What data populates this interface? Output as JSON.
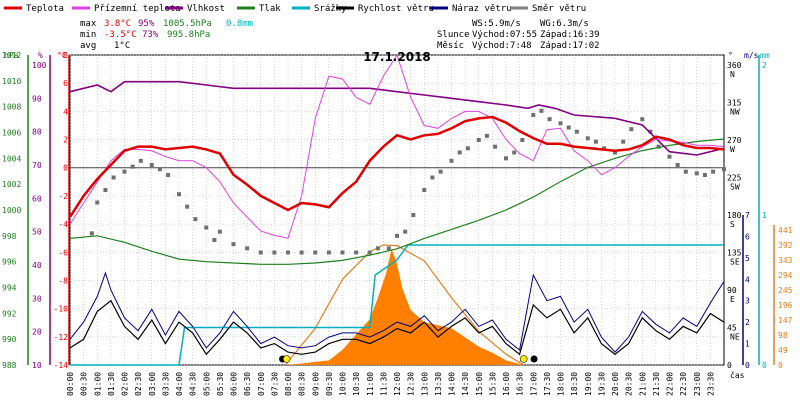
{
  "chart_data": {
    "type": "line",
    "title": "17.1.2018",
    "legend": [
      {
        "name": "Teplota",
        "color": "#e00000"
      },
      {
        "name": "Přízemní teplota",
        "color": "#e040e0"
      },
      {
        "name": "Vlhkost",
        "color": "#800080"
      },
      {
        "name": "Tlak",
        "color": "#208020"
      },
      {
        "name": "Srážky",
        "color": "#00b0c0"
      },
      {
        "name": "Rychlost větru",
        "color": "#000000"
      },
      {
        "name": "Náraz větru",
        "color": "#000080"
      },
      {
        "name": "Směr větru",
        "color": "#808080"
      }
    ],
    "stats": {
      "max_label": "max",
      "max_temp": "3.8°C",
      "max_hum": "95%",
      "max_press": "1005.5hPa",
      "max_rain": "0.8mm",
      "min_label": "min",
      "min_temp": "-3.5°C",
      "min_hum": "73%",
      "min_press": "995.8hPa",
      "avg_label": "avg",
      "avg_temp": "1°C",
      "ws": "WS:5.9m/s",
      "wg": "WG:6.3m/s",
      "sun_label": "Slunce",
      "sun_rise": "Východ:07:55",
      "sun_set": "Západ:16:39",
      "moon_label": "Měsíc",
      "moon_rise": "Východ:7:48",
      "moon_set": "Západ:17:02"
    },
    "x_unit": "čas",
    "x_ticks": [
      "00:00",
      "00:30",
      "01:00",
      "01:30",
      "02:00",
      "02:30",
      "03:00",
      "03:30",
      "04:00",
      "04:30",
      "05:00",
      "05:30",
      "06:00",
      "06:30",
      "07:00",
      "07:30",
      "08:00",
      "08:30",
      "09:00",
      "09:30",
      "10:00",
      "10:30",
      "11:00",
      "11:30",
      "12:00",
      "12:30",
      "13:00",
      "13:30",
      "14:00",
      "14:30",
      "15:00",
      "15:30",
      "16:00",
      "16:30",
      "17:00",
      "17:30",
      "18:00",
      "18:30",
      "19:00",
      "19:30",
      "20:00",
      "20:30",
      "21:00",
      "21:30",
      "22:00",
      "22:30",
      "23:00",
      "23:30"
    ],
    "axes": {
      "hpa": {
        "unit": "hPa",
        "ticks": [
          1012,
          1010,
          1008,
          1006,
          1004,
          1002,
          1000,
          998,
          996,
          994,
          992,
          990,
          988
        ]
      },
      "pct": {
        "unit": "%",
        "ticks": [
          100,
          90,
          80,
          70,
          60,
          50,
          40,
          30,
          20,
          10
        ]
      },
      "temp": {
        "unit": "°C",
        "ticks": [
          8,
          6,
          4,
          2,
          0,
          -2,
          -4,
          -6,
          -8,
          -10,
          -12,
          -14
        ]
      },
      "deg": {
        "unit": "°",
        "ticks": [
          "360",
          "315",
          "270",
          "225",
          "180",
          "135",
          "90",
          "45",
          "0"
        ],
        "dirs": [
          "N",
          "NW",
          "W",
          "SW",
          "S",
          "SE",
          "E",
          "NE",
          ""
        ]
      },
      "ms": {
        "unit": "m/s",
        "ticks": [
          7,
          6,
          5,
          4,
          3,
          2,
          1,
          0
        ]
      },
      "mm": {
        "unit": "mm",
        "ticks": [
          2,
          1,
          0
        ]
      },
      "rad": {
        "ticks": [
          441,
          392,
          343,
          294,
          245,
          196,
          147,
          98,
          49,
          0
        ]
      }
    },
    "temperature": [
      [
        0,
        -3.5
      ],
      [
        0.5,
        -2
      ],
      [
        1,
        -0.8
      ],
      [
        1.5,
        0.2
      ],
      [
        2,
        1.2
      ],
      [
        2.5,
        1.5
      ],
      [
        3,
        1.5
      ],
      [
        3.5,
        1.3
      ],
      [
        4,
        1.4
      ],
      [
        4.5,
        1.5
      ],
      [
        5,
        1.3
      ],
      [
        5.5,
        1
      ],
      [
        6,
        -0.5
      ],
      [
        6.5,
        -1.2
      ],
      [
        7,
        -2
      ],
      [
        7.5,
        -2.5
      ],
      [
        8,
        -3
      ],
      [
        8.5,
        -2.5
      ],
      [
        9,
        -2.6
      ],
      [
        9.5,
        -2.8
      ],
      [
        10,
        -1.8
      ],
      [
        10.5,
        -1
      ],
      [
        11,
        0.5
      ],
      [
        11.5,
        1.5
      ],
      [
        12,
        2.3
      ],
      [
        12.5,
        2
      ],
      [
        13,
        2.3
      ],
      [
        13.5,
        2.4
      ],
      [
        14,
        2.8
      ],
      [
        14.5,
        3.3
      ],
      [
        15,
        3.5
      ],
      [
        15.5,
        3.6
      ],
      [
        16,
        3.2
      ],
      [
        16.5,
        2.6
      ],
      [
        17,
        2.1
      ],
      [
        17.5,
        1.7
      ],
      [
        18,
        1.7
      ],
      [
        18.5,
        1.5
      ],
      [
        19,
        1.4
      ],
      [
        19.5,
        1.3
      ],
      [
        20,
        1.2
      ],
      [
        20.5,
        1.3
      ],
      [
        21,
        1.6
      ],
      [
        21.5,
        2.2
      ],
      [
        22,
        2
      ],
      [
        22.5,
        1.6
      ],
      [
        23,
        1.4
      ],
      [
        23.5,
        1.4
      ],
      [
        24,
        1.3
      ]
    ],
    "ground_temperature": [
      [
        0,
        -4
      ],
      [
        0.5,
        -2.5
      ],
      [
        1,
        -1
      ],
      [
        1.5,
        0.5
      ],
      [
        2,
        1.3
      ],
      [
        2.5,
        1.3
      ],
      [
        3,
        1.2
      ],
      [
        3.5,
        0.8
      ],
      [
        4,
        0.5
      ],
      [
        4.5,
        0.5
      ],
      [
        5,
        0
      ],
      [
        5.5,
        -1
      ],
      [
        6,
        -2.5
      ],
      [
        6.5,
        -3.5
      ],
      [
        7,
        -4.5
      ],
      [
        7.5,
        -4.8
      ],
      [
        8,
        -5
      ],
      [
        8.5,
        -2
      ],
      [
        9,
        3.5
      ],
      [
        9.5,
        6.5
      ],
      [
        10,
        6.3
      ],
      [
        10.5,
        5
      ],
      [
        11,
        4.5
      ],
      [
        11.5,
        6.5
      ],
      [
        12,
        8
      ],
      [
        12.5,
        5
      ],
      [
        13,
        3
      ],
      [
        13.5,
        2.8
      ],
      [
        14,
        3.5
      ],
      [
        14.5,
        4
      ],
      [
        15,
        4
      ],
      [
        15.5,
        3.5
      ],
      [
        16,
        2
      ],
      [
        16.5,
        1
      ],
      [
        17,
        0.5
      ],
      [
        17.5,
        2.7
      ],
      [
        18,
        2.8
      ],
      [
        18.5,
        1.2
      ],
      [
        19,
        0.5
      ],
      [
        19.5,
        -0.5
      ],
      [
        20,
        0
      ],
      [
        20.5,
        0.8
      ],
      [
        21,
        1.5
      ],
      [
        21.5,
        2
      ],
      [
        22,
        1.9
      ],
      [
        22.5,
        1.8
      ],
      [
        23,
        1.6
      ],
      [
        23.5,
        1.6
      ],
      [
        24,
        1.5
      ]
    ],
    "humidity": [
      [
        0,
        92
      ],
      [
        1,
        94
      ],
      [
        1.5,
        92
      ],
      [
        2,
        95
      ],
      [
        3,
        95
      ],
      [
        4,
        95
      ],
      [
        5,
        94
      ],
      [
        6,
        93
      ],
      [
        7,
        93
      ],
      [
        8,
        93
      ],
      [
        9,
        93
      ],
      [
        10,
        93
      ],
      [
        11,
        93
      ],
      [
        12,
        92
      ],
      [
        13,
        91
      ],
      [
        14,
        90
      ],
      [
        15,
        89
      ],
      [
        16,
        88
      ],
      [
        16.8,
        87
      ],
      [
        17.2,
        88
      ],
      [
        17.8,
        87
      ],
      [
        18.5,
        85
      ],
      [
        20,
        84
      ],
      [
        21,
        82
      ],
      [
        22,
        74
      ],
      [
        23,
        73
      ],
      [
        24,
        75
      ]
    ],
    "pressure": [
      [
        0,
        997.8
      ],
      [
        1,
        998
      ],
      [
        2,
        997.5
      ],
      [
        3,
        996.8
      ],
      [
        4,
        996.2
      ],
      [
        5,
        996
      ],
      [
        6,
        995.9
      ],
      [
        7,
        995.8
      ],
      [
        8,
        995.8
      ],
      [
        9,
        995.9
      ],
      [
        10,
        996.1
      ],
      [
        11,
        996.5
      ],
      [
        12,
        997
      ],
      [
        13,
        997.8
      ],
      [
        14,
        998.5
      ],
      [
        15,
        999.2
      ],
      [
        16,
        1000
      ],
      [
        17,
        1001
      ],
      [
        18,
        1002.2
      ],
      [
        19,
        1003.3
      ],
      [
        20,
        1004
      ],
      [
        21,
        1004.6
      ],
      [
        22,
        1005
      ],
      [
        23,
        1005.3
      ],
      [
        24,
        1005.5
      ]
    ],
    "rain_cumulative": [
      [
        0,
        0
      ],
      [
        4,
        0
      ],
      [
        4.2,
        0.25
      ],
      [
        11,
        0.25
      ],
      [
        11.2,
        0.6
      ],
      [
        12,
        0.7
      ],
      [
        12.4,
        0.8
      ],
      [
        24,
        0.8
      ]
    ],
    "wind_speed": [
      [
        0,
        0.8
      ],
      [
        0.5,
        1.2
      ],
      [
        1,
        2.5
      ],
      [
        1.5,
        3
      ],
      [
        2,
        1.8
      ],
      [
        2.5,
        1.2
      ],
      [
        3,
        2.1
      ],
      [
        3.5,
        1
      ],
      [
        4,
        2
      ],
      [
        4.5,
        1.5
      ],
      [
        5,
        0.5
      ],
      [
        5.5,
        1.2
      ],
      [
        6,
        2
      ],
      [
        6.5,
        1.5
      ],
      [
        7,
        0.8
      ],
      [
        7.5,
        1
      ],
      [
        8,
        0.6
      ],
      [
        8.5,
        0.5
      ],
      [
        9,
        0.6
      ],
      [
        9.5,
        1
      ],
      [
        10,
        1.2
      ],
      [
        10.5,
        1.2
      ],
      [
        11,
        1
      ],
      [
        11.5,
        1.3
      ],
      [
        12,
        1.7
      ],
      [
        12.5,
        1.5
      ],
      [
        13,
        2
      ],
      [
        13.5,
        1.3
      ],
      [
        14,
        1.8
      ],
      [
        14.5,
        2.2
      ],
      [
        15,
        1.5
      ],
      [
        15.5,
        1.8
      ],
      [
        16,
        1
      ],
      [
        16.5,
        0.5
      ],
      [
        17,
        2.8
      ],
      [
        17.5,
        2.2
      ],
      [
        18,
        2.6
      ],
      [
        18.5,
        1.5
      ],
      [
        19,
        2.2
      ],
      [
        19.5,
        1
      ],
      [
        20,
        0.5
      ],
      [
        20.5,
        1
      ],
      [
        21,
        2.2
      ],
      [
        21.5,
        1.6
      ],
      [
        22,
        1.2
      ],
      [
        22.5,
        1.8
      ],
      [
        23,
        1.5
      ],
      [
        23.5,
        2.4
      ],
      [
        24,
        2
      ]
    ],
    "wind_gust": [
      [
        0,
        1.2
      ],
      [
        0.5,
        2
      ],
      [
        1,
        3.2
      ],
      [
        1.3,
        4.3
      ],
      [
        1.5,
        3.5
      ],
      [
        2,
        2.2
      ],
      [
        2.5,
        1.6
      ],
      [
        3,
        2.6
      ],
      [
        3.5,
        1.4
      ],
      [
        4,
        2.5
      ],
      [
        4.5,
        1.8
      ],
      [
        5,
        0.8
      ],
      [
        5.5,
        1.5
      ],
      [
        6,
        2.5
      ],
      [
        6.5,
        1.8
      ],
      [
        7,
        1
      ],
      [
        7.5,
        1.3
      ],
      [
        8,
        0.9
      ],
      [
        8.5,
        0.8
      ],
      [
        9,
        0.9
      ],
      [
        9.5,
        1.3
      ],
      [
        10,
        1.5
      ],
      [
        10.5,
        1.5
      ],
      [
        11,
        1.3
      ],
      [
        11.5,
        1.6
      ],
      [
        12,
        2
      ],
      [
        12.5,
        1.8
      ],
      [
        13,
        2.3
      ],
      [
        13.5,
        1.6
      ],
      [
        14,
        2
      ],
      [
        14.5,
        2.6
      ],
      [
        15,
        1.8
      ],
      [
        15.5,
        2.1
      ],
      [
        16,
        1.2
      ],
      [
        16.5,
        0.7
      ],
      [
        17,
        4.2
      ],
      [
        17.5,
        3
      ],
      [
        18,
        3.2
      ],
      [
        18.5,
        2
      ],
      [
        19,
        2.6
      ],
      [
        19.5,
        1.3
      ],
      [
        20,
        0.6
      ],
      [
        20.5,
        1.3
      ],
      [
        21,
        2.5
      ],
      [
        21.5,
        1.9
      ],
      [
        22,
        1.5
      ],
      [
        22.5,
        2.2
      ],
      [
        23,
        1.8
      ],
      [
        23.5,
        2.9
      ],
      [
        24,
        3.9
      ]
    ],
    "wind_direction": [
      [
        0.8,
        158
      ],
      [
        1,
        195
      ],
      [
        1.3,
        210
      ],
      [
        1.6,
        225
      ],
      [
        2,
        232
      ],
      [
        2.3,
        238
      ],
      [
        2.6,
        245
      ],
      [
        3,
        240
      ],
      [
        3.3,
        235
      ],
      [
        3.6,
        228
      ],
      [
        4,
        205
      ],
      [
        4.3,
        190
      ],
      [
        4.6,
        175
      ],
      [
        5,
        165
      ],
      [
        5.3,
        150
      ],
      [
        5.5,
        160
      ],
      [
        6,
        145
      ],
      [
        6.5,
        140
      ],
      [
        7,
        135
      ],
      [
        7.5,
        135
      ],
      [
        8,
        135
      ],
      [
        8.5,
        135
      ],
      [
        9,
        135
      ],
      [
        9.5,
        135
      ],
      [
        10,
        135
      ],
      [
        10.5,
        135
      ],
      [
        11,
        135
      ],
      [
        11.3,
        140
      ],
      [
        11.7,
        140
      ],
      [
        12,
        155
      ],
      [
        12.3,
        160
      ],
      [
        12.6,
        180
      ],
      [
        13,
        210
      ],
      [
        13.3,
        225
      ],
      [
        13.6,
        232
      ],
      [
        14,
        245
      ],
      [
        14.3,
        255
      ],
      [
        14.6,
        260
      ],
      [
        15,
        270
      ],
      [
        15.3,
        275
      ],
      [
        15.6,
        262
      ],
      [
        16,
        248
      ],
      [
        16.3,
        255
      ],
      [
        16.6,
        270
      ],
      [
        17,
        300
      ],
      [
        17.3,
        305
      ],
      [
        17.6,
        295
      ],
      [
        18,
        290
      ],
      [
        18.3,
        285
      ],
      [
        18.6,
        280
      ],
      [
        19,
        272
      ],
      [
        19.3,
        268
      ],
      [
        19.6,
        260
      ],
      [
        20,
        255
      ],
      [
        20.3,
        268
      ],
      [
        20.6,
        283
      ],
      [
        21,
        295
      ],
      [
        21.3,
        280
      ],
      [
        21.6,
        262
      ],
      [
        22,
        250
      ],
      [
        22.3,
        240
      ],
      [
        22.6,
        232
      ],
      [
        23,
        230
      ],
      [
        23.3,
        228
      ],
      [
        23.6,
        232
      ],
      [
        24,
        235
      ]
    ],
    "sun_curve": [
      [
        7.9,
        0
      ],
      [
        9,
        120
      ],
      [
        10,
        280
      ],
      [
        11,
        370
      ],
      [
        11.5,
        392
      ],
      [
        12,
        390
      ],
      [
        13,
        340
      ],
      [
        14,
        220
      ],
      [
        15,
        110
      ],
      [
        16,
        35
      ],
      [
        16.65,
        0
      ]
    ],
    "radiation": [
      [
        7.9,
        0
      ],
      [
        8.5,
        5
      ],
      [
        9,
        10
      ],
      [
        9.5,
        15
      ],
      [
        10,
        50
      ],
      [
        10.5,
        100
      ],
      [
        11,
        150
      ],
      [
        11.3,
        220
      ],
      [
        11.6,
        300
      ],
      [
        11.8,
        380
      ],
      [
        12,
        330
      ],
      [
        12.2,
        250
      ],
      [
        12.5,
        180
      ],
      [
        13,
        140
      ],
      [
        13.5,
        130
      ],
      [
        14,
        120
      ],
      [
        14.5,
        90
      ],
      [
        15,
        60
      ],
      [
        15.5,
        40
      ],
      [
        16,
        15
      ],
      [
        16.65,
        0
      ]
    ]
  }
}
